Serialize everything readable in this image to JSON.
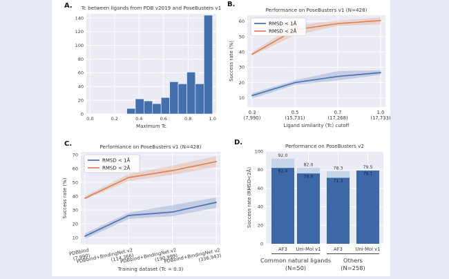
{
  "figure": {
    "background_color": "#e7e9f4",
    "card_color": "#ffffff",
    "plot_bg_color": "#eaebf4",
    "grid_color": "#ffffff",
    "blue": "#4c72b0",
    "orange": "#dd8452",
    "hist_bar_color": "#4470ad",
    "dark_bar_color": "#3d68a8",
    "cap_bar_color": "#c5d5ea"
  },
  "chart_data": [
    {
      "id": "A",
      "panel_label": "A.",
      "type": "bar",
      "title": "Tc between ligands from PDB v2019 and PoseBusters v1",
      "xlabel": "Maximum Tc",
      "ylabel": "",
      "bin_start": 0.3,
      "bin_width": 0.07,
      "values": [
        8,
        22,
        19,
        15,
        24,
        47,
        44,
        61,
        44,
        144
      ],
      "xlim": [
        -0.03,
        1.03
      ],
      "ylim": [
        0,
        146
      ],
      "xticks": [
        "0.0",
        "0.2",
        "0.4",
        "0.6",
        "0.8",
        "1.0"
      ],
      "xtick_values": [
        0.0,
        0.2,
        0.4,
        0.6,
        0.8,
        1.0
      ],
      "yticks": [
        0,
        20,
        40,
        60,
        80,
        100,
        120,
        140
      ],
      "grid": true
    },
    {
      "id": "B",
      "panel_label": "B.",
      "type": "line",
      "title": "Performance on PoseBusters v1 (N=428)",
      "xlabel": "Ligand similarity (Tc) cutoff",
      "ylabel": "Success rate (%)",
      "categories": [
        [
          "0.3",
          "(7,990)"
        ],
        [
          "0.5",
          "(15,731)"
        ],
        [
          "0.7",
          "(17,268)"
        ],
        [
          "1.0",
          "(17,733)"
        ]
      ],
      "ylim": [
        4,
        64
      ],
      "yticks": [
        10,
        20,
        30,
        40,
        50,
        60
      ],
      "legend_position": "upper-left",
      "grid": true,
      "series": [
        {
          "name": "RMSD < 1Å",
          "color": "#4c72b0",
          "values": [
            11.5,
            20,
            24,
            26.5
          ],
          "band_low": [
            9.5,
            18.5,
            21.5,
            25
          ],
          "band_high": [
            13,
            21.5,
            27.5,
            28
          ]
        },
        {
          "name": "RMSD < 2Å",
          "color": "#dd8452",
          "values": [
            38.5,
            54.5,
            58.5,
            60.5
          ],
          "band_low": [
            37.5,
            51,
            57,
            58
          ],
          "band_high": [
            40,
            57.5,
            60.5,
            62.5
          ]
        }
      ]
    },
    {
      "id": "C",
      "panel_label": "C.",
      "type": "line",
      "title": "Performance on PoseBusters v1 (N=428)",
      "xlabel": "Training dataset (Tc = 0.3)",
      "ylabel": "Success rate (%)",
      "categories": [
        [
          "PDBbind",
          "(7,990)"
        ],
        [
          "PDBbind+BindingNet v2",
          "(114,366)"
        ],
        [
          "PDBbind+BindingNet v2",
          "(190,999)"
        ],
        [
          "PDBbind+BindingNet v2",
          "(336,943)"
        ]
      ],
      "xtick_rotation": -12,
      "ylim": [
        5,
        72
      ],
      "yticks": [
        10,
        20,
        30,
        40,
        50,
        60,
        70
      ],
      "legend_position": "upper-left",
      "grid": true,
      "series": [
        {
          "name": "RMSD < 1Å",
          "color": "#4c72b0",
          "values": [
            11,
            26,
            28.5,
            35.5
          ],
          "band_low": [
            9,
            23.5,
            25.5,
            31.5
          ],
          "band_high": [
            13,
            28,
            33.5,
            39
          ]
        },
        {
          "name": "RMSD < 2Å",
          "color": "#dd8452",
          "values": [
            38.5,
            53.5,
            58.5,
            65
          ],
          "band_low": [
            37.5,
            51,
            55.5,
            61
          ],
          "band_high": [
            40,
            56,
            62,
            69
          ]
        }
      ]
    },
    {
      "id": "D",
      "panel_label": "D.",
      "type": "stacked-bar",
      "title": "Performance on PoseBusters v2",
      "xlabel": "",
      "ylabel": "Success rate (RMSD<2Å)",
      "ylim": [
        0,
        100
      ],
      "yticks": [
        0,
        20,
        40,
        60,
        80,
        100
      ],
      "grid": true,
      "bars": [
        {
          "label": "AF3",
          "value": 82.0,
          "cap_value": 92.0,
          "value_label": "82.0",
          "cap_label": "92.0",
          "group": 0
        },
        {
          "label": "Uni-Mol v1",
          "value": 76.0,
          "cap_value": 82.0,
          "value_label": "76.0",
          "cap_label": "82.0",
          "group": 0
        },
        {
          "label": "AF3",
          "value": 71.3,
          "cap_value": 78.3,
          "value_label": "71.3",
          "cap_label": "78.3",
          "group": 1
        },
        {
          "label": "Uni-Mol v1",
          "value": 79.1,
          "cap_value": 79.5,
          "value_label": "79.1",
          "cap_label": "79.5",
          "group": 1
        }
      ],
      "groups": [
        {
          "label": "Common natural ligands",
          "sublabel": "(N=50)",
          "bars": [
            0,
            1
          ]
        },
        {
          "label": "Others",
          "sublabel": "(N=258)",
          "bars": [
            2,
            3
          ]
        }
      ]
    }
  ]
}
